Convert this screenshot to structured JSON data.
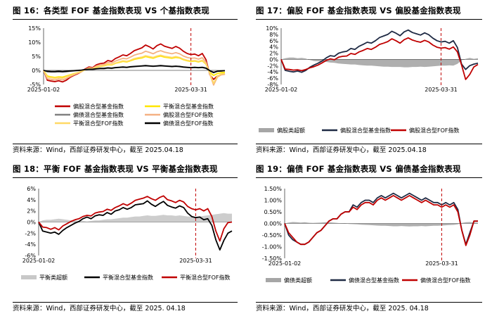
{
  "source_text_a": "资料来源：Wind，西部证券研发中心，截至 2025.04.18",
  "source_text_b": "资料来源：Wind，西部证券研发中心，截至 2025. 04.18",
  "chart_data": [
    {
      "id": "c1",
      "type": "line",
      "title": "图 16：各类型 FOF 基金指数表现 VS 个基指数表现",
      "x_start_label": "2025-01-02",
      "x_end_label": "2025-03-31",
      "yticks": [
        "15%",
        "10%",
        "5%",
        "0%",
        "-5%"
      ],
      "ylim": [
        -5,
        15
      ],
      "legend_placement": "bottom",
      "series": [
        {
          "name": "偏股混合型基金指数",
          "color": "#c00000",
          "values": [
            0,
            -3.5,
            -3.8,
            -4.0,
            -3.7,
            -4.1,
            -3.5,
            -2.5,
            -1.8,
            -1.2,
            -0.5,
            0.5,
            1.2,
            1.0,
            2.0,
            2.4,
            2.6,
            3.5,
            3.2,
            4.2,
            4.8,
            5.5,
            5.2,
            6.0,
            7.0,
            7.5,
            8.0,
            9.0,
            8.4,
            7.6,
            8.8,
            9.4,
            8.6,
            8.2,
            7.8,
            8.5,
            7.9,
            6.8,
            6.0,
            5.6,
            5.8,
            5.2,
            6.0,
            3.8,
            -1.5,
            -3.2,
            -2.0,
            -1.5,
            -1.2
          ]
        },
        {
          "name": "平衡混合型基金指数",
          "color": "#ffe600",
          "values": [
            0,
            -2.0,
            -2.3,
            -2.5,
            -2.3,
            -2.4,
            -2.0,
            -1.6,
            -1.2,
            -0.8,
            -0.4,
            0.2,
            0.6,
            0.6,
            1.1,
            1.4,
            1.6,
            2.0,
            1.9,
            2.5,
            2.8,
            3.2,
            3.0,
            3.4,
            3.9,
            4.2,
            4.4,
            4.9,
            4.6,
            4.3,
            4.8,
            5.1,
            4.7,
            4.5,
            4.3,
            4.6,
            4.4,
            3.8,
            3.4,
            3.2,
            3.3,
            3.0,
            3.4,
            2.2,
            -0.7,
            -1.8,
            -1.1,
            -0.8,
            -0.7
          ]
        },
        {
          "name": "偏债混合型基金指数",
          "color": "#808080",
          "values": [
            0,
            -0.5,
            -0.6,
            -0.6,
            -0.5,
            -0.6,
            -0.5,
            -0.3,
            -0.2,
            -0.1,
            0,
            0.2,
            0.3,
            0.3,
            0.5,
            0.6,
            0.6,
            0.8,
            0.7,
            0.9,
            1.0,
            1.1,
            1.0,
            1.2,
            1.3,
            1.4,
            1.5,
            1.6,
            1.5,
            1.4,
            1.5,
            1.6,
            1.5,
            1.4,
            1.3,
            1.4,
            1.3,
            1.1,
            1.0,
            0.9,
            1.0,
            0.9,
            1.0,
            0.7,
            -0.2,
            -0.6,
            -0.3,
            -0.2,
            -0.1
          ]
        },
        {
          "name": "偏股混合型FOF指数",
          "color": "#f4b183",
          "values": [
            0,
            -3.0,
            -3.2,
            -3.4,
            -3.1,
            -3.4,
            -2.9,
            -2.2,
            -1.6,
            -1.0,
            -0.5,
            0.3,
            0.9,
            0.8,
            1.6,
            2.0,
            2.1,
            2.8,
            2.6,
            3.3,
            3.8,
            4.3,
            4.1,
            4.7,
            5.4,
            5.8,
            6.1,
            6.8,
            6.4,
            5.9,
            6.6,
            7.0,
            6.5,
            6.2,
            5.9,
            6.3,
            5.9,
            5.1,
            4.6,
            4.3,
            4.4,
            4.0,
            4.5,
            2.9,
            -1.3,
            -5.2,
            -2.4,
            -1.6,
            -1.4
          ]
        },
        {
          "name": "平衡混合型FOF指数",
          "color": "#ffd966",
          "values": [
            0,
            -2.4,
            -2.6,
            -2.8,
            -2.6,
            -2.8,
            -2.3,
            -1.8,
            -1.3,
            -0.8,
            -0.4,
            0.2,
            0.7,
            0.6,
            1.2,
            1.5,
            1.7,
            2.2,
            2.0,
            2.6,
            3.0,
            3.4,
            3.2,
            3.6,
            4.2,
            4.5,
            4.7,
            5.2,
            4.9,
            4.6,
            5.1,
            5.4,
            5.0,
            4.8,
            4.6,
            4.9,
            4.6,
            4.0,
            3.6,
            3.4,
            3.5,
            3.2,
            3.6,
            2.3,
            -1.0,
            -4.6,
            -2.0,
            -1.3,
            -1.1
          ]
        },
        {
          "name": "偏债混合型FOF指数",
          "color": "#000000",
          "values": [
            0,
            -0.3,
            -0.4,
            -0.4,
            -0.3,
            -0.4,
            -0.3,
            -0.2,
            -0.1,
            0,
            0.1,
            0.3,
            0.4,
            0.4,
            0.6,
            0.7,
            0.7,
            0.9,
            0.8,
            1.0,
            1.1,
            1.2,
            1.1,
            1.3,
            1.4,
            1.5,
            1.6,
            1.7,
            1.6,
            1.5,
            1.6,
            1.7,
            1.6,
            1.5,
            1.4,
            1.5,
            1.4,
            1.2,
            1.1,
            1.0,
            1.1,
            1.0,
            1.1,
            0.8,
            -0.1,
            -0.8,
            -0.3,
            -0.2,
            -0.1
          ]
        }
      ]
    },
    {
      "id": "c2",
      "type": "line",
      "title": "图 17：偏股 FOF 基金指数表现 VS 偏股基金指数表现",
      "x_start_label": "2025-01-02",
      "x_end_label": "2025-03-31",
      "yticks": [
        "10%",
        "8%",
        "6%",
        "4%",
        "2%",
        "0%",
        "-2%",
        "-4%",
        "-6%",
        "-8%"
      ],
      "ylim": [
        -8,
        10
      ],
      "legend_placement": "bottom",
      "series": [
        {
          "name": "偏股类超额",
          "color": "#a6a6a6",
          "kind": "area",
          "values": [
            0,
            0.4,
            0.6,
            0.6,
            0.4,
            0.5,
            0.3,
            -0.2,
            -0.5,
            -0.6,
            -0.6,
            -0.8,
            -1.0,
            -1.1,
            -1.3,
            -1.4,
            -1.5,
            -1.6,
            -1.6,
            -1.8,
            -1.9,
            -2.0,
            -2.0,
            -2.1,
            -2.2,
            -2.3,
            -2.3,
            -2.4,
            -2.4,
            -2.4,
            -2.5,
            -2.5,
            -2.4,
            -2.4,
            -2.3,
            -2.4,
            -2.3,
            -2.2,
            -2.1,
            -2.0,
            -2.0,
            -1.9,
            -2.0,
            -1.4,
            -0.3,
            0.2,
            0.5,
            0.2,
            0.4
          ]
        },
        {
          "name": "偏股混合型基金指数",
          "color": "#1f2a44",
          "values": [
            0,
            -3.5,
            -3.8,
            -4.0,
            -3.7,
            -4.1,
            -3.5,
            -2.5,
            -1.8,
            -1.2,
            -0.5,
            0.5,
            1.2,
            1.0,
            2.0,
            2.4,
            2.6,
            3.5,
            3.2,
            4.2,
            4.8,
            5.5,
            5.2,
            6.0,
            7.0,
            7.5,
            8.0,
            9.0,
            8.4,
            7.6,
            8.8,
            9.4,
            8.6,
            8.2,
            7.8,
            8.5,
            7.9,
            6.8,
            6.0,
            5.6,
            5.8,
            5.2,
            6.0,
            3.8,
            -1.5,
            -3.2,
            -2.0,
            -1.5,
            -1.2
          ]
        },
        {
          "name": "偏股混合型FOF指数",
          "color": "#c00000",
          "values": [
            0,
            -3.1,
            -3.2,
            -3.4,
            -3.3,
            -3.6,
            -3.2,
            -2.7,
            -2.3,
            -1.8,
            -1.1,
            -0.3,
            0.2,
            -0.1,
            0.7,
            1.0,
            1.1,
            1.9,
            1.6,
            2.4,
            2.9,
            3.5,
            3.2,
            3.9,
            4.8,
            5.2,
            5.7,
            6.6,
            6.0,
            5.2,
            6.3,
            6.9,
            6.2,
            5.8,
            5.5,
            6.1,
            5.6,
            4.6,
            3.9,
            3.6,
            3.8,
            3.3,
            4.0,
            2.4,
            -1.8,
            -6.4,
            -4.8,
            -2.4,
            -1.6
          ]
        }
      ]
    },
    {
      "id": "c3",
      "type": "line",
      "title": "图 18：平衡 FOF 基金指数表现 VS 平衡基金指数表现",
      "x_start_label": "2025-01-02",
      "x_end_label": "2025-03-31",
      "yticks": [
        "6%",
        "4%",
        "2%",
        "0%",
        "-2%",
        "-4%",
        "-6%"
      ],
      "ylim": [
        -6,
        6
      ],
      "legend_placement": "bottom",
      "series": [
        {
          "name": "平衡类超额",
          "color": "#c8c8c8",
          "kind": "area",
          "values": [
            0,
            0.3,
            0.4,
            0.4,
            0.5,
            0.6,
            0.5,
            0.4,
            0.3,
            0.3,
            0.2,
            0.2,
            0.1,
            0.2,
            0.3,
            0.3,
            0.4,
            0.5,
            0.5,
            0.6,
            0.7,
            0.8,
            0.8,
            0.9,
            1.0,
            1.0,
            1.1,
            1.2,
            1.1,
            1.1,
            1.2,
            1.3,
            1.2,
            1.2,
            1.1,
            1.2,
            1.1,
            1.0,
            1.0,
            0.9,
            1.0,
            1.1,
            1.2,
            1.3,
            1.4,
            1.5,
            1.6,
            1.5,
            1.5
          ]
        },
        {
          "name": "平衡混合型基金指数",
          "color": "#000000",
          "values": [
            0,
            -1.6,
            -1.8,
            -2.0,
            -1.8,
            -2.2,
            -1.5,
            -1.0,
            -0.6,
            -0.2,
            0.1,
            0.6,
            0.9,
            0.6,
            1.1,
            1.3,
            1.2,
            1.7,
            1.4,
            2.0,
            2.2,
            2.6,
            2.3,
            2.6,
            3.1,
            3.2,
            3.3,
            3.8,
            3.2,
            2.8,
            3.3,
            3.7,
            3.0,
            2.7,
            2.5,
            2.9,
            2.6,
            1.6,
            1.0,
            0.8,
            0.9,
            0.4,
            0.6,
            -0.6,
            -3.2,
            -5.0,
            -3.3,
            -2.0,
            -1.6
          ]
        },
        {
          "name": "平衡混合型FOF指数",
          "color": "#c00000",
          "values": [
            0,
            -0.9,
            -1.0,
            -1.3,
            -1.0,
            -1.4,
            -0.7,
            -0.3,
            0.1,
            0.4,
            0.6,
            1.0,
            1.2,
            1.1,
            1.6,
            1.8,
            1.9,
            2.3,
            2.1,
            2.6,
            2.9,
            3.3,
            3.0,
            3.4,
            3.9,
            4.1,
            4.3,
            4.6,
            4.2,
            3.9,
            4.4,
            4.7,
            4.0,
            3.8,
            3.5,
            3.9,
            3.6,
            2.8,
            2.4,
            2.2,
            2.4,
            2.0,
            2.4,
            1.0,
            -1.6,
            -3.4,
            -1.2,
            -0.1,
            0.0
          ]
        }
      ]
    },
    {
      "id": "c4",
      "type": "line",
      "title": "图 19：偏债 FOF 基金指数表现 VS 偏债基金指数表现",
      "x_start_label": "2025-01-02",
      "x_end_label": "2025-03-31",
      "yticks": [
        "1.50%",
        "1.00%",
        "0.50%",
        "0.00%",
        "-0.50%",
        "-1.00%",
        "-1.50%"
      ],
      "ylim": [
        -1.5,
        1.5
      ],
      "legend_placement": "bottom",
      "series": [
        {
          "name": "偏债类超额",
          "color": "#a6a6a6",
          "kind": "area",
          "values": [
            0,
            0.04,
            0.06,
            0.05,
            0.04,
            0.05,
            0.03,
            0.02,
            0.03,
            0.04,
            0.05,
            0.05,
            0.04,
            0.02,
            0.01,
            0.0,
            -0.02,
            -0.03,
            -0.04,
            -0.05,
            -0.06,
            -0.07,
            -0.08,
            -0.09,
            -0.1,
            -0.1,
            -0.11,
            -0.12,
            -0.12,
            -0.11,
            -0.12,
            -0.13,
            -0.12,
            -0.12,
            -0.11,
            -0.12,
            -0.11,
            -0.1,
            -0.1,
            -0.09,
            -0.08,
            -0.07,
            -0.06,
            -0.04,
            0.02,
            0.05,
            0.06,
            0.04,
            0.03
          ]
        },
        {
          "name": "偏债混合型基金指数",
          "color": "#1f2a44",
          "values": [
            0,
            -0.5,
            -0.7,
            -0.8,
            -0.9,
            -0.9,
            -0.8,
            -0.6,
            -0.4,
            -0.3,
            -0.1,
            0.1,
            0.2,
            0.2,
            0.4,
            0.5,
            0.5,
            0.8,
            0.7,
            0.9,
            1.0,
            1.0,
            0.9,
            1.1,
            1.2,
            1.1,
            1.2,
            1.3,
            1.2,
            1.1,
            1.2,
            1.3,
            1.2,
            1.1,
            1.0,
            1.1,
            1.0,
            0.9,
            0.9,
            0.8,
            0.9,
            0.8,
            0.9,
            0.6,
            -0.3,
            -0.9,
            -0.4,
            0.1,
            0.1
          ]
        },
        {
          "name": "偏债混合型FOF指数",
          "color": "#c00000",
          "values": [
            0,
            -0.4,
            -0.6,
            -0.8,
            -0.9,
            -0.9,
            -0.8,
            -0.6,
            -0.4,
            -0.3,
            -0.1,
            0.1,
            0.2,
            0.2,
            0.4,
            0.5,
            0.5,
            0.7,
            0.6,
            0.8,
            0.9,
            0.9,
            0.8,
            1.0,
            1.1,
            1.0,
            1.1,
            1.2,
            1.1,
            1.0,
            1.1,
            1.2,
            1.1,
            1.0,
            0.9,
            1.0,
            0.9,
            0.8,
            0.8,
            0.7,
            0.8,
            0.7,
            0.8,
            0.5,
            -0.3,
            -0.95,
            -0.5,
            0.1,
            0.1
          ]
        }
      ]
    }
  ]
}
